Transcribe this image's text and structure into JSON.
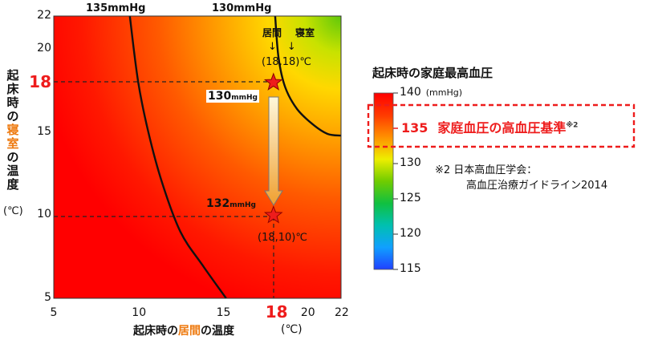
{
  "chart_data": {
    "type": "heatmap",
    "x_axis": {
      "range": [
        5,
        22
      ],
      "ticks": [
        "5",
        "10",
        "15",
        "18",
        "20",
        "22"
      ],
      "highlight_tick": "18",
      "label_parts": [
        {
          "text": "起床時の",
          "accent": false
        },
        {
          "text": "居間",
          "accent": true
        },
        {
          "text": "の温度",
          "accent": false
        }
      ],
      "unit": "(℃)"
    },
    "y_axis": {
      "range": [
        5,
        22
      ],
      "ticks": [
        "5",
        "10",
        "15",
        "18",
        "20",
        "22"
      ],
      "highlight_tick": "18",
      "label_parts": [
        {
          "text": "起",
          "accent": false
        },
        {
          "text": "床",
          "accent": false
        },
        {
          "text": "時",
          "accent": false
        },
        {
          "text": "の",
          "accent": false
        },
        {
          "text": "寝",
          "accent": true
        },
        {
          "text": "室",
          "accent": true
        },
        {
          "text": "の",
          "accent": false
        },
        {
          "text": "温",
          "accent": false
        },
        {
          "text": "度",
          "accent": false
        }
      ],
      "unit": "(℃)"
    },
    "contours": [
      {
        "label": "135mmHg",
        "points": [
          [
            9.5,
            22
          ],
          [
            10.0,
            18
          ],
          [
            10.6,
            15
          ],
          [
            11.4,
            12
          ],
          [
            12.5,
            9
          ],
          [
            13.8,
            7
          ],
          [
            15.2,
            5
          ]
        ]
      },
      {
        "label": "130mmHg",
        "points": [
          [
            18.1,
            22
          ],
          [
            18.3,
            19.5
          ],
          [
            18.7,
            17.7
          ],
          [
            19.4,
            16.4
          ],
          [
            20.3,
            15.5
          ],
          [
            21.2,
            14.9
          ],
          [
            22,
            14.8
          ]
        ]
      }
    ],
    "points": [
      {
        "x": 18,
        "y": 18,
        "value_label": "130",
        "value_unit": "mmHg",
        "coord_label": "(18,18)℃"
      },
      {
        "x": 18,
        "y": 10,
        "value_label": "132",
        "value_unit": "mmHg",
        "coord_label": "(18,10)℃"
      }
    ],
    "point_header": {
      "room1": "居間",
      "room2": "寝室",
      "arrows": "↓　↓"
    },
    "colorbar": {
      "title": "起床時の家庭最高血圧",
      "min": 115,
      "max": 140,
      "ticks": [
        {
          "value": 140,
          "label": "140",
          "unit": "(mmHg)"
        },
        {
          "value": 130,
          "label": "130",
          "unit": ""
        },
        {
          "value": 125,
          "label": "125",
          "unit": ""
        },
        {
          "value": 120,
          "label": "120",
          "unit": ""
        },
        {
          "value": 115,
          "label": "115",
          "unit": ""
        }
      ],
      "colors": [
        "#2040ff",
        "#10a0ff",
        "#00c0b0",
        "#10c040",
        "#70cc00",
        "#eeee00",
        "#ff9000",
        "#ff3a00",
        "#ff0000"
      ],
      "highlight": {
        "value": 135,
        "label": "135",
        "text": "家庭血圧の高血圧基準",
        "sup": "※2"
      }
    },
    "footnote": {
      "line1": "※2 日本高血圧学会：",
      "line2": "高血圧治療ガイドライン2014"
    },
    "colors": {
      "accent_red": "#ee1c1c",
      "accent_orange": "#ee7a10",
      "contour": "#111111"
    }
  }
}
